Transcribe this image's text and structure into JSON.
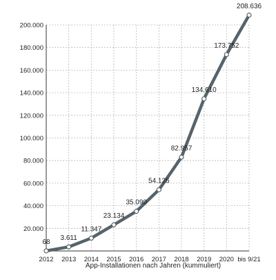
{
  "chart_data": {
    "type": "line",
    "title": "",
    "xlabel": "App-Installationen nach Jahren (kummuliert)",
    "ylabel": "",
    "categories": [
      "2012",
      "2013",
      "2014",
      "2015",
      "2016",
      "2017",
      "2018",
      "2019",
      "2020",
      "bis 9/21"
    ],
    "series": [
      {
        "values": [
          68,
          3611,
          11347,
          23134,
          35090,
          54126,
          82957,
          134610,
          173752,
          208636
        ],
        "labels": [
          "68",
          "3.611",
          "11.347",
          "23.134",
          "35.090",
          "54.126",
          "82.957",
          "134.610",
          "173.752",
          "208.636"
        ]
      }
    ],
    "ylim": [
      0,
      200000
    ],
    "yticks": [
      20000,
      40000,
      60000,
      80000,
      100000,
      120000,
      140000,
      160000,
      180000,
      200000
    ],
    "ytick_labels": [
      "20.000",
      "40.000",
      "60.000",
      "80.000",
      "100.000",
      "120.000",
      "140.000",
      "160.000",
      "180.000",
      "200.000"
    ],
    "grid": true,
    "colors": {
      "line": "#56636b",
      "marker_fill": "#ffffff",
      "marker_stroke": "#56636b",
      "grid": "#b8b8b8"
    }
  }
}
